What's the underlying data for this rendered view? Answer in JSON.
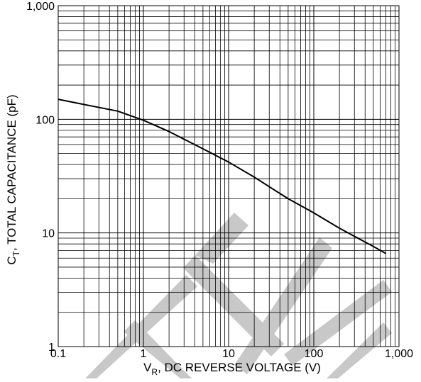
{
  "chart_data": {
    "type": "line",
    "x_scale": "log",
    "y_scale": "log",
    "xlim": [
      0.1,
      1000
    ],
    "ylim": [
      1,
      1000
    ],
    "grid": true,
    "x_ticks": [
      {
        "value": 0.1,
        "label": "0.1"
      },
      {
        "value": 1,
        "label": "1"
      },
      {
        "value": 10,
        "label": "10"
      },
      {
        "value": 100,
        "label": "100"
      },
      {
        "value": 1000,
        "label": "1,000"
      }
    ],
    "y_ticks": [
      {
        "value": 1,
        "label": "1"
      },
      {
        "value": 10,
        "label": "10"
      },
      {
        "value": 100,
        "label": "100"
      },
      {
        "value": 1000,
        "label": "1,000"
      }
    ],
    "xlabel": {
      "main": "V",
      "sub": "R",
      "rest": ", DC REVERSE VOLTAGE (V)"
    },
    "ylabel": {
      "main": "C",
      "sub": "T",
      "rest": ", TOTAL CAPACITANCE (pF)"
    },
    "series": [
      {
        "x": [
          0.1,
          0.2,
          0.5,
          1,
          2,
          5,
          10,
          20,
          50,
          100,
          200,
          500,
          700
        ],
        "y": [
          150,
          135,
          118,
          98,
          78,
          55,
          42,
          31,
          20,
          15,
          11,
          7.6,
          6.6
        ]
      }
    ],
    "line_color": "#000000",
    "watermark_color": "#c8c8c8"
  }
}
